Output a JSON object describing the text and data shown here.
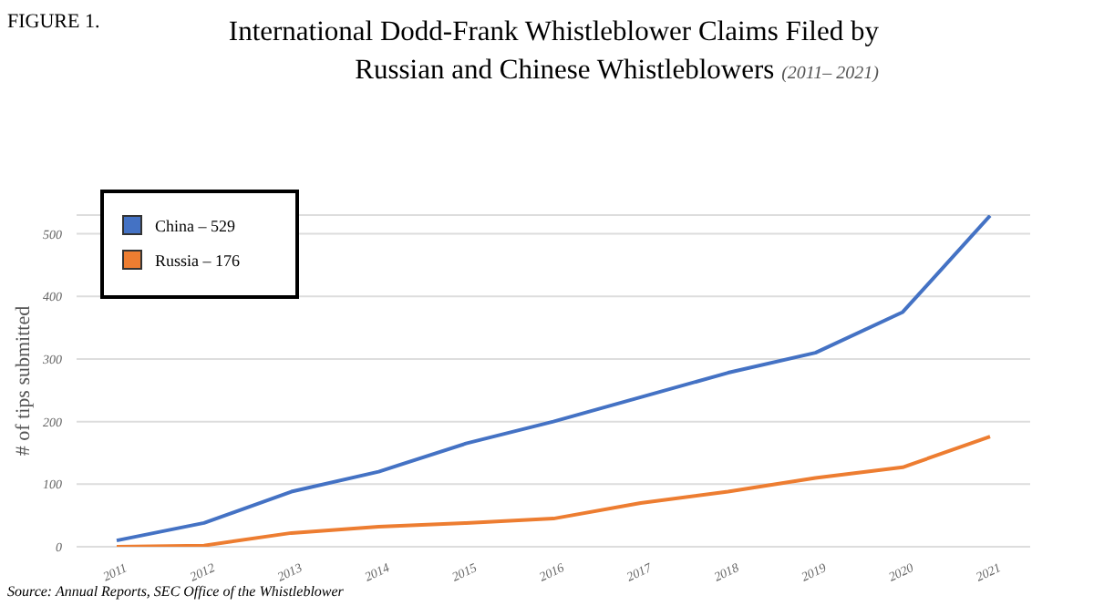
{
  "chart_data": {
    "type": "line",
    "title": "International Dodd-Frank Whistleblower Claims Filed by Russian and Chinese Whistleblowers",
    "subtitle": "(2011– 2021)",
    "ylabel": "# of tips submitted",
    "categories": [
      "2011",
      "2012",
      "2013",
      "2014",
      "2015",
      "2016",
      "2017",
      "2018",
      "2019",
      "2020",
      "2021"
    ],
    "series": [
      {
        "name": "China – 529",
        "color": "#4472c4",
        "values": [
          10,
          38,
          88,
          120,
          165,
          200,
          239,
          278,
          310,
          375,
          529
        ]
      },
      {
        "name": "Russia – 176",
        "color": "#ed7d31",
        "values": [
          0,
          2,
          22,
          32,
          38,
          45,
          70,
          88,
          110,
          127,
          176
        ]
      }
    ],
    "ylim": [
      0,
      530
    ],
    "yticks": [
      0,
      100,
      200,
      300,
      400,
      500
    ],
    "grid": "y",
    "legend": "top left",
    "marker": "none",
    "line_style": "solid",
    "annotations": [
      "FIGURE 1.",
      "Source: Annual Reports, SEC Office of the Whistleblower"
    ]
  }
}
